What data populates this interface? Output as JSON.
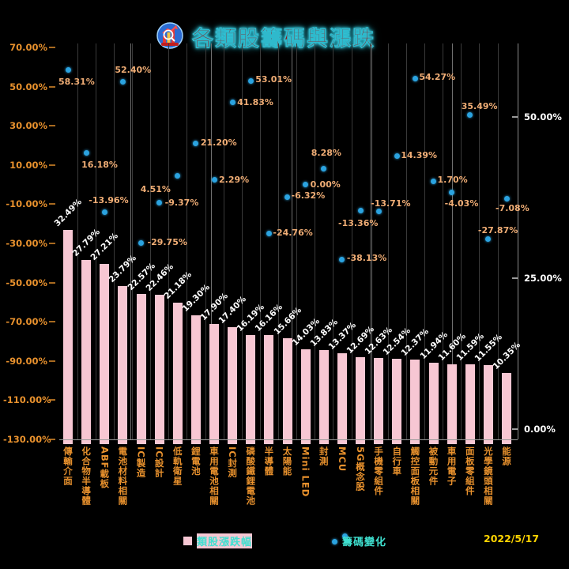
{
  "title": "各類股籌碼與漲跌",
  "date": "2022/5/17",
  "legend": {
    "bar_label": "類股漲跌幅",
    "dot_label": "籌碼變化"
  },
  "colors": {
    "background": "#000000",
    "bar": "#f7c7d3",
    "dot": "#2ba3e0",
    "bar_value_label": "#ffffff",
    "dot_value_label": "#f0ad75",
    "axis_label": "#e8912d",
    "right_axis_label": "#ffffff",
    "legend_text": "#3fe0d0",
    "date_text": "#ffd400",
    "title_fill": "#8b1d1d",
    "title_glow": "#35d4e6"
  },
  "chart_data": {
    "type": "bar",
    "subtype": "combo-bar-scatter",
    "title": "各類股籌碼與漲跌",
    "grid": "vertical-only",
    "legend_position": "bottom",
    "categories": [
      "傳輸介面",
      "化合物半導體",
      "ABF載板",
      "電池材料相關",
      "IC製造",
      "IC設計",
      "低軌衛星",
      "鋰電池",
      "車用電池相關",
      "IC封測",
      "磷酸鐵鋰電池",
      "半導體",
      "太陽能",
      "Mini LED",
      "封測",
      "MCU",
      "5G概念股",
      "手機零組件",
      "自行車",
      "觸控面板相關",
      "被動元件",
      "車用電子",
      "面板零組件",
      "光學鏡頭相關",
      "能源"
    ],
    "series": [
      {
        "name": "類股漲跌幅",
        "type": "bar",
        "axis": "right",
        "unit": "%",
        "values": [
          32.49,
          27.79,
          27.21,
          23.79,
          22.57,
          22.46,
          21.18,
          19.3,
          17.9,
          17.4,
          16.19,
          16.16,
          15.66,
          14.03,
          13.83,
          13.37,
          12.69,
          12.63,
          12.54,
          12.37,
          11.94,
          11.6,
          11.59,
          11.55,
          10.35
        ]
      },
      {
        "name": "籌碼變化",
        "type": "scatter",
        "axis": "left",
        "unit": "%",
        "values": [
          58.31,
          16.18,
          -13.96,
          52.4,
          -29.75,
          -9.37,
          4.51,
          21.2,
          2.29,
          41.83,
          53.01,
          -24.76,
          -6.32,
          0.0,
          8.28,
          -38.13,
          -13.36,
          -13.71,
          14.39,
          54.27,
          1.7,
          -4.03,
          35.49,
          -27.87,
          -7.08
        ]
      }
    ],
    "left_axis": {
      "min": -130,
      "max": 70,
      "tick_step": 20,
      "ticks": [
        "70.00%",
        "50.00%",
        "30.00%",
        "10.00%",
        "-10.00%",
        "-30.00%",
        "-50.00%",
        "-70.00%",
        "-90.00%",
        "-110.00%",
        "-130.00%"
      ]
    },
    "right_axis": {
      "min": 0,
      "max": 50,
      "ticks": [
        "50.00%",
        "25.00%",
        "0.00%"
      ]
    }
  }
}
